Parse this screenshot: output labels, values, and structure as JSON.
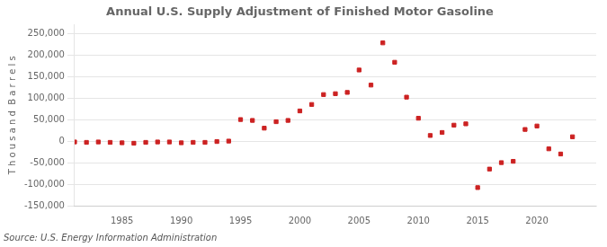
{
  "chart_data": {
    "type": "scatter",
    "title": "Annual U.S. Supply Adjustment of Finished Motor Gasoline",
    "ylabel": "T h o u s a n d  B a r r e l s",
    "annotation": "Source: U.S. Energy Information Administration",
    "color": "#cc2222",
    "marker": "square",
    "grid": "y",
    "xlim": [
      1981,
      2025
    ],
    "xticks": [
      1985,
      1990,
      1995,
      2000,
      2005,
      2010,
      2015,
      2020
    ],
    "ylim": [
      -150000,
      270000
    ],
    "yticks": [
      {
        "value": -150000,
        "label": "-150,000"
      },
      {
        "value": -100000,
        "label": "-100,000"
      },
      {
        "value": -50000,
        "label": "-50,000"
      },
      0,
      {
        "value": 50000,
        "label": "50,000"
      },
      {
        "value": 100000,
        "label": "100,000"
      },
      {
        "value": 150000,
        "label": "150,000"
      },
      {
        "value": 200000,
        "label": "200,000"
      },
      {
        "value": 250000,
        "label": "250,000"
      }
    ],
    "x": [
      1981,
      1982,
      1983,
      1984,
      1985,
      1986,
      1987,
      1988,
      1989,
      1990,
      1991,
      1992,
      1993,
      1994,
      1995,
      1996,
      1997,
      1998,
      1999,
      2000,
      2001,
      2002,
      2003,
      2004,
      2005,
      2006,
      2007,
      2008,
      2009,
      2010,
      2011,
      2012,
      2013,
      2014,
      2015,
      2016,
      2017,
      2018,
      2019,
      2020,
      2021,
      2022,
      2023
    ],
    "values": [
      -2000,
      -3000,
      -2000,
      -3000,
      -4000,
      -5000,
      -3000,
      -2000,
      -2000,
      -4000,
      -3000,
      -3000,
      -1000,
      0,
      50000,
      48000,
      30000,
      45000,
      48000,
      70000,
      85000,
      108000,
      110000,
      113000,
      165000,
      130000,
      228000,
      183000,
      102000,
      53000,
      13000,
      20000,
      37000,
      40000,
      -108000,
      -65000,
      -50000,
      -47000,
      27000,
      35000,
      -18000,
      -30000,
      10000
    ]
  }
}
